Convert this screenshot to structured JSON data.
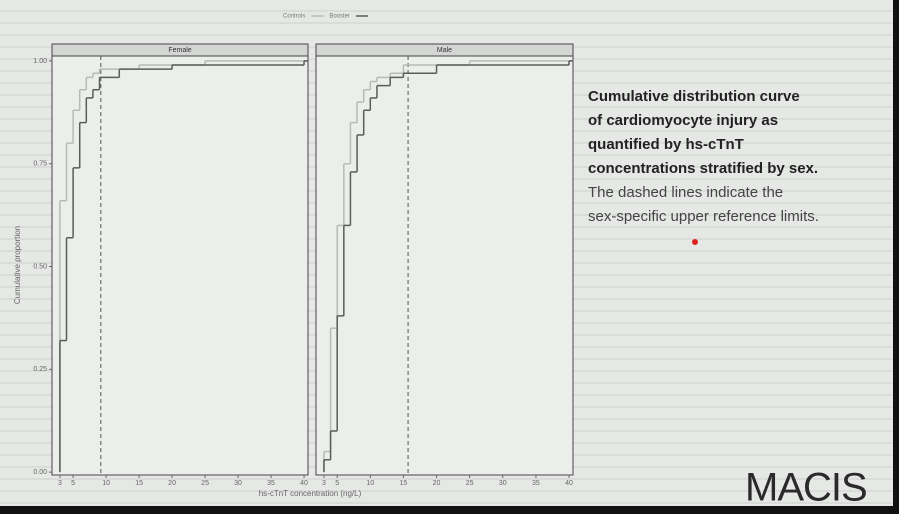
{
  "chart_data": [
    {
      "type": "step",
      "title": "Female",
      "y_label": "Cumulative proportion",
      "x_label": "hs-cTnT concentration (ng/L)",
      "x": [
        3,
        4,
        5,
        6,
        7,
        8,
        9,
        12,
        15,
        20,
        25,
        40
      ],
      "series": [
        {
          "name": "Controls",
          "color": "#b8bab8",
          "values": [
            0.66,
            0.8,
            0.88,
            0.93,
            0.96,
            0.97,
            0.98,
            0.98,
            0.99,
            0.99,
            1.0,
            1.0
          ]
        },
        {
          "name": "Booster",
          "color": "#5a5c5a",
          "values": [
            0.32,
            0.57,
            0.74,
            0.85,
            0.91,
            0.93,
            0.96,
            0.98,
            0.98,
            0.99,
            0.99,
            1.0
          ]
        }
      ],
      "reference_line": 9.2,
      "xlim": [
        1.8,
        40.6
      ],
      "xticks": [
        3,
        5,
        10,
        15,
        20,
        25,
        30,
        35,
        40
      ],
      "ylim": [
        -0.007,
        1.012
      ],
      "yticks": [
        {
          "value": 0,
          "label": "0.00"
        },
        {
          "value": 0.25,
          "label": "0.25"
        },
        {
          "value": 0.5,
          "label": "0.50"
        },
        {
          "value": 0.75,
          "label": "0.75"
        },
        {
          "value": 1,
          "label": "1.00"
        }
      ],
      "grid": false
    },
    {
      "type": "step",
      "title": "Male",
      "x": [
        3,
        4,
        5,
        6,
        7,
        8,
        9,
        10,
        11,
        13,
        15,
        20,
        25,
        40
      ],
      "series": [
        {
          "color": "#b8bab8",
          "values": [
            0.05,
            0.35,
            0.6,
            0.75,
            0.85,
            0.9,
            0.93,
            0.95,
            0.96,
            0.97,
            0.99,
            0.99,
            1.0,
            1.0
          ]
        },
        {
          "color": "#5a5c5a",
          "values": [
            0.03,
            0.1,
            0.38,
            0.6,
            0.73,
            0.82,
            0.88,
            0.91,
            0.94,
            0.96,
            0.97,
            0.99,
            0.99,
            1.0
          ]
        }
      ],
      "reference_line": 15.7,
      "xlim": [
        1.8,
        40.6
      ],
      "xticks": [
        3,
        5,
        10,
        15,
        20,
        25,
        30,
        35,
        40
      ],
      "ylim": [
        -0.007,
        1.012
      ],
      "grid": false
    }
  ],
  "caption": {
    "bold_lines": [
      "Cumulative distribution curve",
      "of cardiomyocyte injury as",
      "quantified by hs-cTnT",
      "concentrations stratified by sex."
    ],
    "normal_lines": [
      "The dashed lines indicate the",
      "sex-specific upper reference limits."
    ]
  },
  "logo": "MACIS"
}
